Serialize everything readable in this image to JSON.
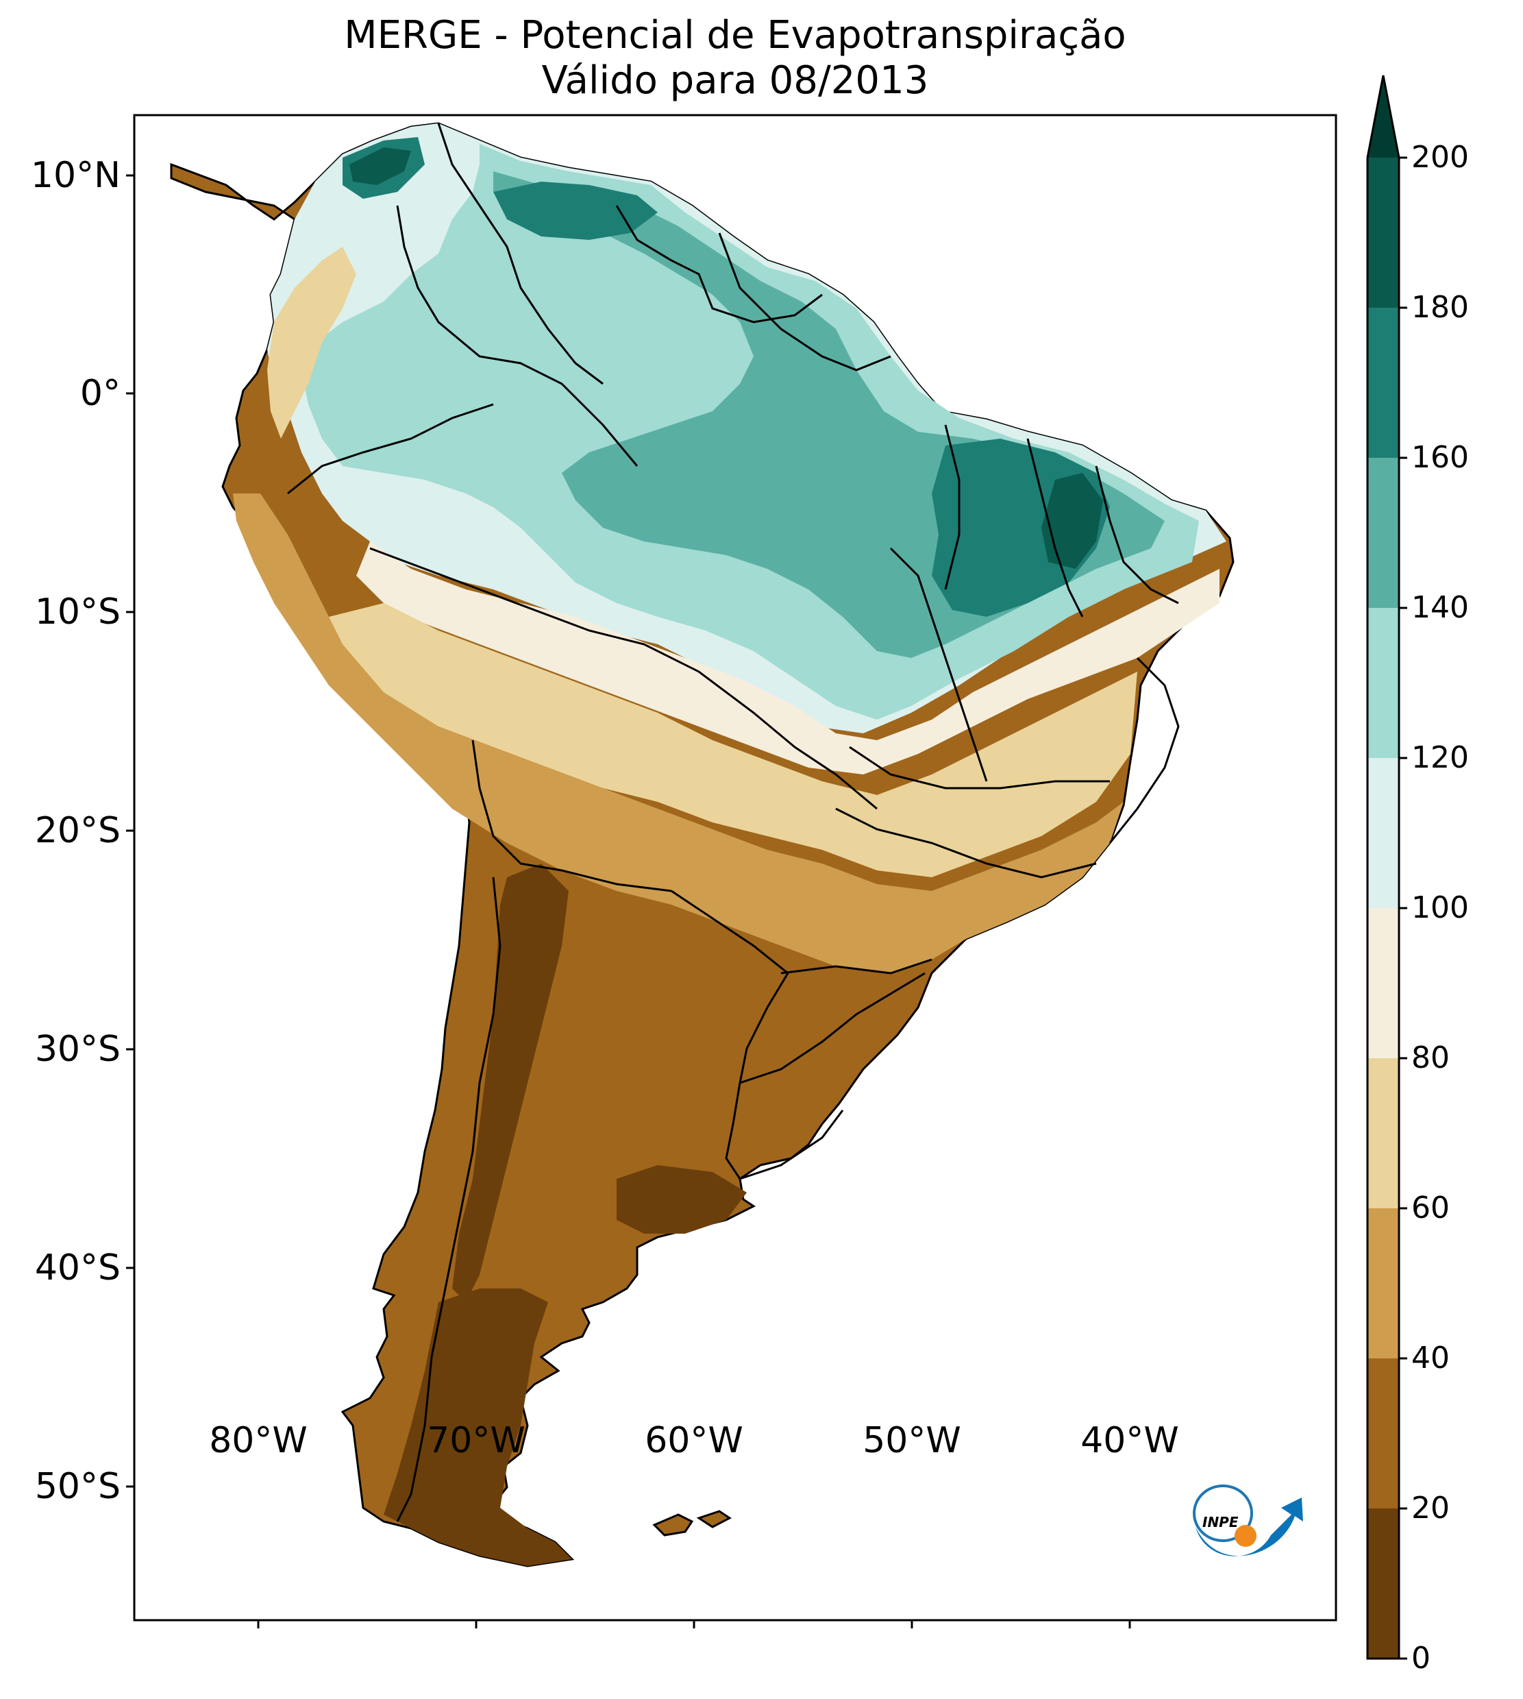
{
  "title": {
    "line1": "MERGE - Potencial de Evapotranspiração",
    "line2": "Válido para 08/2013"
  },
  "latitude_labels": [
    "10°N",
    "0°",
    "10°S",
    "20°S",
    "30°S",
    "40°S",
    "50°S"
  ],
  "longitude_labels": [
    "80°W",
    "70°W",
    "60°W",
    "50°W",
    "40°W"
  ],
  "colorbar": {
    "ticks": [
      "0",
      "20",
      "40",
      "60",
      "80",
      "100",
      "120",
      "140",
      "160",
      "180",
      "200"
    ],
    "bins": [
      {
        "range": "0-20",
        "color": "#6b3f0b"
      },
      {
        "range": "20-40",
        "color": "#a0661c"
      },
      {
        "range": "40-60",
        "color": "#cf9d4e"
      },
      {
        "range": "60-80",
        "color": "#ead49b"
      },
      {
        "range": "80-100",
        "color": "#f6eedd"
      },
      {
        "range": "100-120",
        "color": "#dcf0ee"
      },
      {
        "range": "120-140",
        "color": "#a1dbd2"
      },
      {
        "range": "140-160",
        "color": "#5aafa3"
      },
      {
        "range": "160-180",
        "color": "#1d7e74"
      },
      {
        "range": "180-200",
        "color": "#0a5a4e"
      }
    ],
    "extend_color": "#023c30"
  },
  "logo": {
    "text": "INPE"
  }
}
